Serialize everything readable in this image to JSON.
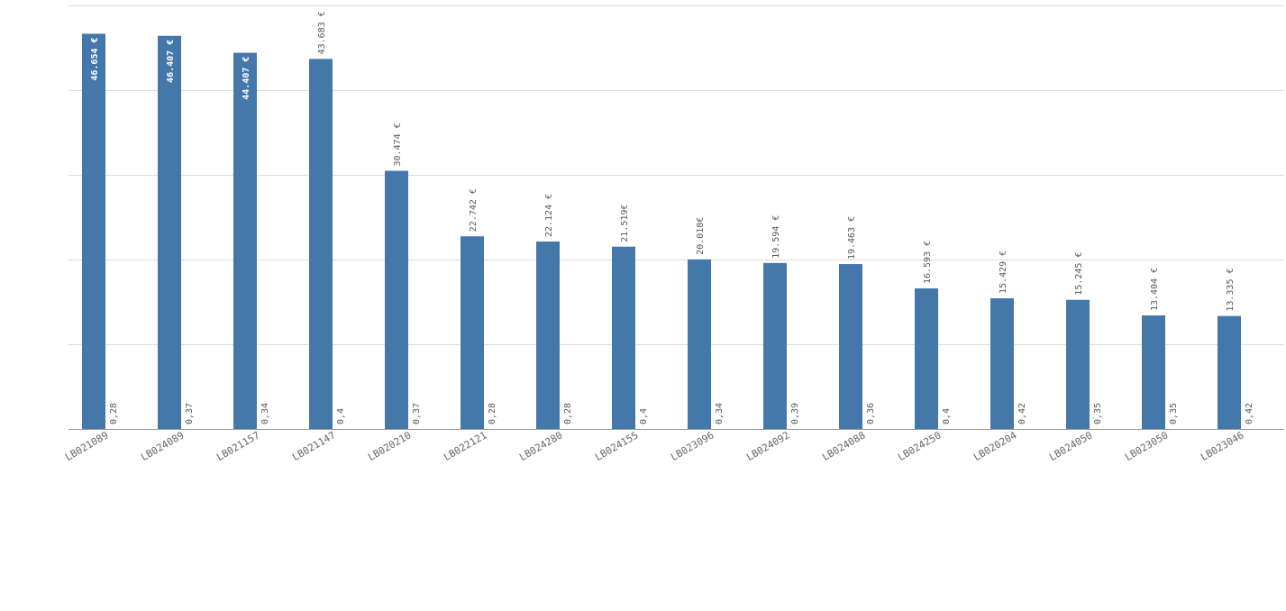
{
  "chart_data": {
    "type": "bar",
    "categories": [
      "LB021089",
      "LB024089",
      "LB021157",
      "LB021147",
      "LB020210",
      "LB022121",
      "LB024280",
      "LB024155",
      "LB023096",
      "LB024092",
      "LB024088",
      "LB024250",
      "LB020204",
      "LB024050",
      "LB023050",
      "LB023046"
    ],
    "values": [
      46654,
      46407,
      44407,
      43683,
      30474,
      22742,
      22124,
      21519,
      20018,
      19594,
      19463,
      16593,
      15429,
      15245,
      13404,
      13335
    ],
    "value_labels": [
      "46.654 €",
      "46.407 €",
      "44.407 €",
      "43.683 €",
      "30.474 €",
      "22.742 €",
      "22.124 €",
      "21.519€",
      "20.018€",
      "19.594 €",
      "19.463 €",
      "16.593 €",
      "15.429 €",
      "15.245 €",
      "13.404 €",
      "13.335 €"
    ],
    "secondary_labels": [
      "0,28",
      "0,37",
      "0,34",
      "0,4",
      "0,37",
      "0,28",
      "0,28",
      "0,4",
      "0,34",
      "0,39",
      "0,36",
      "0,4",
      "0,42",
      "0,35",
      "0,35",
      "0,42"
    ],
    "ylim": [
      0,
      50000
    ],
    "grid": true,
    "colors": {
      "bar": "#4477aa",
      "grid": "#dcdcdc"
    }
  }
}
